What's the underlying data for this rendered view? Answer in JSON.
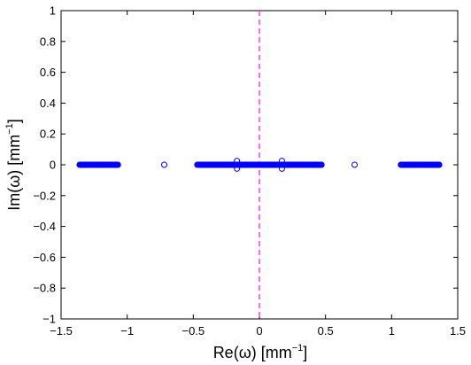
{
  "chart_data": {
    "type": "scatter",
    "xlabel": "Re(ω) [mm",
    "ylabel": "Im(ω) [mm",
    "xlabel_sup": "−1",
    "ylabel_sup": "−1",
    "xlabel_close": "]",
    "ylabel_close": "]",
    "xlim": [
      -1.5,
      1.5
    ],
    "ylim": [
      -1,
      1
    ],
    "xticks": [
      -1.5,
      -1,
      -0.5,
      0,
      0.5,
      1,
      1.5
    ],
    "xtick_labels": [
      "−1.5",
      "−1",
      "−0.5",
      "0",
      "0.5",
      "1",
      "1.5"
    ],
    "yticks": [
      -1,
      -0.8,
      -0.6,
      -0.4,
      -0.2,
      0,
      0.2,
      0.4,
      0.6,
      0.8,
      1
    ],
    "ytick_labels": [
      "−1",
      "−0.8",
      "−0.6",
      "−0.4",
      "−0.2",
      "0",
      "0.2",
      "0.4",
      "0.6",
      "0.8",
      "1"
    ],
    "grid": false,
    "marker": "open-circle",
    "marker_color": "#0000ff",
    "reference_line": {
      "x": 0,
      "style": "dashed",
      "color": "#ff44ff"
    },
    "clusters": [
      {
        "x_from": -1.36,
        "x_to": -1.07,
        "y": 0,
        "count": 60
      },
      {
        "x_from": -0.47,
        "x_to": 0.47,
        "y": 0,
        "count": 190
      },
      {
        "x_from": 1.07,
        "x_to": 1.36,
        "y": 0,
        "count": 60
      }
    ],
    "points": [
      {
        "x": -0.72,
        "y": 0
      },
      {
        "x": 0.72,
        "y": 0
      },
      {
        "x": -0.17,
        "y": 0.025
      },
      {
        "x": -0.17,
        "y": -0.025
      },
      {
        "x": 0.17,
        "y": 0.025
      },
      {
        "x": 0.17,
        "y": -0.025
      }
    ]
  }
}
